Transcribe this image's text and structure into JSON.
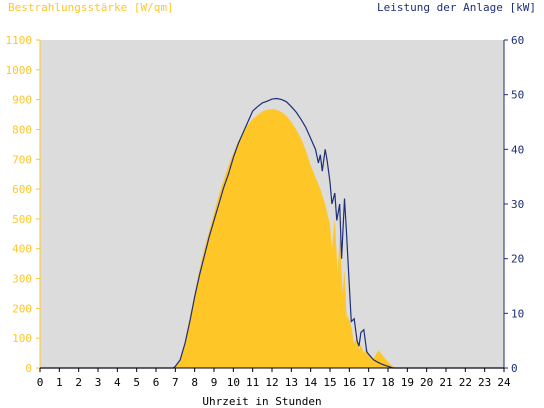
{
  "chart_data": {
    "type": "area",
    "left_axis_label": "Bestrahlungsstärke [W/qm]",
    "right_axis_label": "Leistung der Anlage [kW]",
    "xlabel": "Uhrzeit in Stunden",
    "xlim": [
      0,
      24
    ],
    "ylim_left": [
      0,
      1100
    ],
    "ylim_right": [
      0,
      60
    ],
    "x_ticks": [
      "0",
      "1",
      "2",
      "3",
      "4",
      "5",
      "6",
      "7",
      "8",
      "9",
      "10",
      "11",
      "12",
      "13",
      "14",
      "15",
      "16",
      "17",
      "18",
      "19",
      "20",
      "21",
      "22",
      "23",
      "24"
    ],
    "y_ticks_left": [
      "0",
      "100",
      "200",
      "300",
      "400",
      "500",
      "600",
      "700",
      "800",
      "900",
      "1000",
      "1100"
    ],
    "y_ticks_right": [
      "0",
      "10",
      "20",
      "30",
      "40",
      "50",
      "60"
    ],
    "grid": false,
    "background": "#DCDCDC",
    "colors": {
      "irradiance": "#FFC627",
      "power": "#1E2E78",
      "axis_left": "#FFC627",
      "axis_right": "#1E2E78"
    },
    "series": [
      {
        "axis": "left",
        "x": [
          0,
          7.0,
          7.25,
          7.5,
          7.75,
          8.0,
          8.25,
          8.5,
          8.75,
          9.0,
          9.25,
          9.5,
          9.75,
          10.0,
          10.25,
          10.5,
          10.75,
          11.0,
          11.25,
          11.5,
          11.75,
          12.0,
          12.25,
          12.5,
          12.75,
          13.0,
          13.25,
          13.5,
          13.75,
          14.0,
          14.25,
          14.5,
          14.75,
          15.0,
          15.1,
          15.25,
          15.4,
          15.5,
          15.65,
          15.75,
          15.85,
          16.0,
          16.1,
          16.25,
          16.4,
          16.5,
          16.6,
          16.75,
          16.9,
          17.0,
          17.25,
          17.5,
          17.75,
          18.0,
          18.25,
          18.5,
          24
        ],
        "values": [
          0,
          0,
          30,
          90,
          170,
          250,
          330,
          400,
          460,
          520,
          580,
          630,
          680,
          720,
          760,
          790,
          815,
          835,
          848,
          860,
          866,
          868,
          866,
          858,
          845,
          825,
          800,
          770,
          730,
          680,
          640,
          600,
          550,
          480,
          400,
          500,
          310,
          450,
          250,
          330,
          180,
          160,
          140,
          80,
          110,
          60,
          80,
          50,
          70,
          40,
          30,
          60,
          40,
          20,
          5,
          0,
          0
        ]
      },
      {
        "axis": "right",
        "x": [
          0,
          6.9,
          7.0,
          7.25,
          7.5,
          7.75,
          8.0,
          8.25,
          8.5,
          8.75,
          9.0,
          9.25,
          9.5,
          9.75,
          10.0,
          10.25,
          10.5,
          10.75,
          11.0,
          11.25,
          11.5,
          11.75,
          12.0,
          12.25,
          12.5,
          12.75,
          13.0,
          13.25,
          13.5,
          13.75,
          14.0,
          14.25,
          14.4,
          14.5,
          14.6,
          14.75,
          14.85,
          15.0,
          15.1,
          15.25,
          15.35,
          15.5,
          15.6,
          15.75,
          15.85,
          16.0,
          16.1,
          16.25,
          16.4,
          16.5,
          16.6,
          16.75,
          16.9,
          17.0,
          17.25,
          17.5,
          17.75,
          18.0,
          18.25,
          18.5,
          24
        ],
        "values": [
          0,
          0,
          0.3,
          1.5,
          4.5,
          8.5,
          13,
          17,
          20.5,
          24,
          27,
          30,
          33,
          35.5,
          38.5,
          41,
          43,
          45,
          47,
          47.8,
          48.5,
          48.8,
          49.2,
          49.3,
          49.1,
          48.7,
          47.8,
          46.8,
          45.5,
          44,
          42,
          40,
          37.5,
          39,
          36,
          40,
          38,
          34,
          30,
          32,
          27,
          30,
          20,
          31,
          25,
          15,
          8.5,
          9,
          5,
          4,
          6.5,
          7,
          3,
          2.5,
          1.5,
          1,
          0.6,
          0.3,
          0,
          0,
          0
        ]
      }
    ]
  }
}
